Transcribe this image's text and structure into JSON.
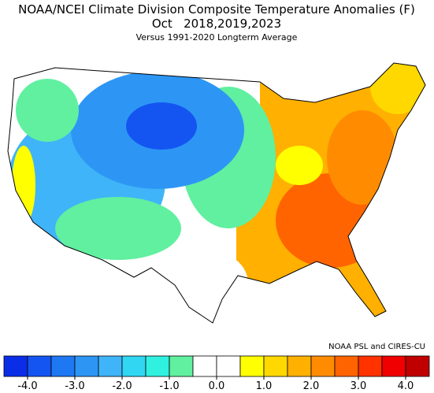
{
  "title": "NOAA/NCEI Climate Division Composite Temperature Anomalies (F)",
  "period": "Oct   2018,2019,2023",
  "subtitle": "Versus 1991-2020 Longterm Average",
  "credit": "NOAA PSL and CIRES-CU",
  "colorbar": {
    "colors": [
      "#0a2ee8",
      "#1455f2",
      "#1e78f4",
      "#2d96f5",
      "#40b4f8",
      "#30d6f2",
      "#30f0e0",
      "#60f0a0",
      "#ffffff",
      "#ffffff",
      "#ffff00",
      "#ffd800",
      "#ffb000",
      "#ff8c00",
      "#ff6400",
      "#ff3200",
      "#f00000",
      "#c00000"
    ],
    "lim": [
      -4.5,
      4.5
    ],
    "ticks": [
      {
        "value": -4,
        "label": "-4.0"
      },
      {
        "value": -3,
        "label": "-3.0"
      },
      {
        "value": -2,
        "label": "-2.0"
      },
      {
        "value": -1,
        "label": "-1.0"
      },
      {
        "value": 0,
        "label": "0.0"
      },
      {
        "value": 1,
        "label": "1.0"
      },
      {
        "value": 2,
        "label": "2.0"
      },
      {
        "value": 3,
        "label": "3.0"
      },
      {
        "value": 4,
        "label": "4.0"
      }
    ]
  }
}
